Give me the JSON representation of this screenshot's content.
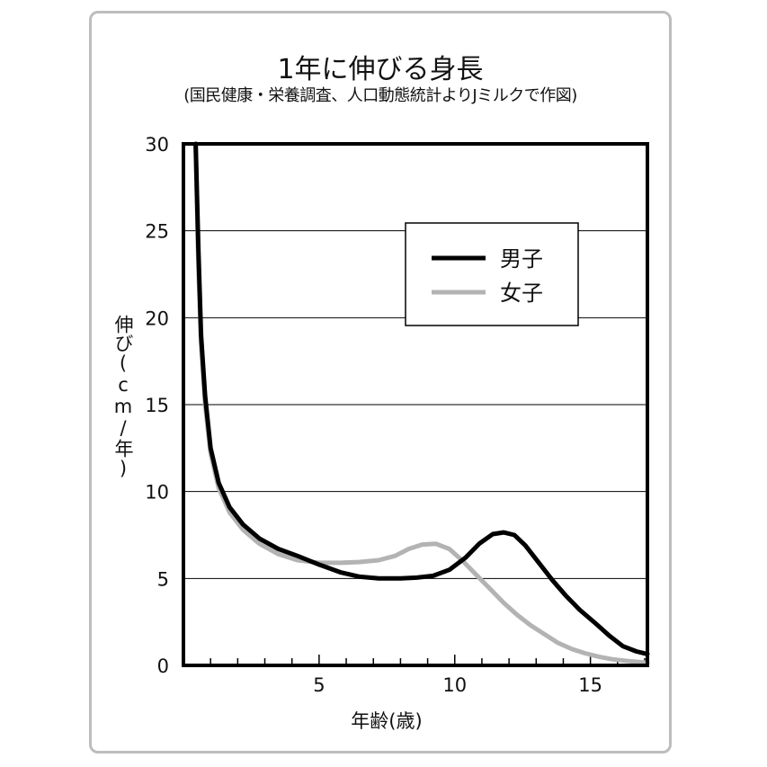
{
  "chart_data": {
    "type": "line",
    "title": "1年に伸びる身長",
    "subtitle": "(国民健康・栄養調査、人口動態統計よりJミルクで作図)",
    "xlabel": "年齢(歳)",
    "ylabel": "伸び(cm/年)",
    "xlim": [
      0,
      17.1
    ],
    "ylim": [
      0,
      30
    ],
    "xticks": [
      5,
      10,
      15
    ],
    "yticks": [
      0,
      5,
      10,
      15,
      20,
      25,
      30
    ],
    "grid": "horizontal",
    "legend": "top-right",
    "series": [
      {
        "name": "男子",
        "color": "#000000",
        "x": [
          0.45,
          0.55,
          0.65,
          0.8,
          1.0,
          1.3,
          1.7,
          2.2,
          2.8,
          3.5,
          4.2,
          5.0,
          5.8,
          6.5,
          7.2,
          8.0,
          8.6,
          9.2,
          9.8,
          10.4,
          10.9,
          11.4,
          11.8,
          12.2,
          12.6,
          13.1,
          13.6,
          14.1,
          14.6,
          15.2,
          15.7,
          16.2,
          16.7,
          17.1
        ],
        "y": [
          30,
          24,
          19,
          15.5,
          12.5,
          10.5,
          9.1,
          8.1,
          7.3,
          6.7,
          6.3,
          5.8,
          5.35,
          5.1,
          5.0,
          5.0,
          5.05,
          5.15,
          5.5,
          6.2,
          7.0,
          7.55,
          7.65,
          7.5,
          6.9,
          5.9,
          4.9,
          4.0,
          3.2,
          2.4,
          1.7,
          1.1,
          0.8,
          0.65
        ]
      },
      {
        "name": "女子",
        "color": "#b3b3b3",
        "x": [
          0.45,
          0.55,
          0.65,
          0.8,
          1.0,
          1.3,
          1.7,
          2.2,
          2.8,
          3.5,
          4.2,
          5.0,
          5.8,
          6.5,
          7.2,
          7.8,
          8.3,
          8.8,
          9.3,
          9.8,
          10.3,
          10.8,
          11.3,
          11.8,
          12.3,
          12.8,
          13.3,
          13.8,
          14.3,
          14.8,
          15.3,
          15.8,
          16.4,
          17.1
        ],
        "y": [
          30,
          23,
          18.5,
          15,
          12.2,
          10.2,
          8.8,
          7.8,
          7.0,
          6.4,
          6.05,
          5.9,
          5.9,
          5.95,
          6.05,
          6.3,
          6.7,
          6.95,
          7.0,
          6.7,
          6.0,
          5.2,
          4.4,
          3.6,
          2.9,
          2.3,
          1.8,
          1.3,
          0.95,
          0.7,
          0.5,
          0.35,
          0.25,
          0.15
        ]
      }
    ]
  }
}
